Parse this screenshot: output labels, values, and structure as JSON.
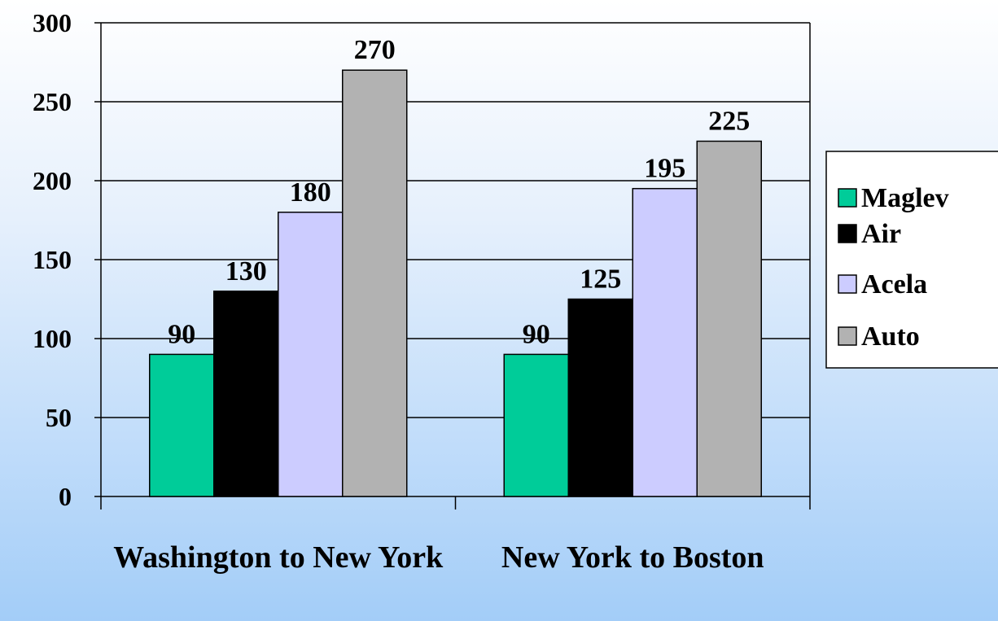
{
  "chart_data": {
    "type": "bar",
    "categories": [
      "Washington to New York",
      "New York to Boston"
    ],
    "series": [
      {
        "name": "Maglev",
        "color": "#00cc99",
        "values": [
          90,
          90
        ]
      },
      {
        "name": "Air",
        "color": "#000000",
        "values": [
          130,
          125
        ]
      },
      {
        "name": "Acela",
        "color": "#ccccff",
        "values": [
          180,
          195
        ]
      },
      {
        "name": "Auto",
        "color": "#b2b2b2",
        "values": [
          270,
          225
        ]
      }
    ],
    "ylim": [
      0,
      300
    ],
    "yticks": [
      0,
      50,
      100,
      150,
      200,
      250,
      300
    ],
    "grid": true,
    "legend": "right"
  }
}
